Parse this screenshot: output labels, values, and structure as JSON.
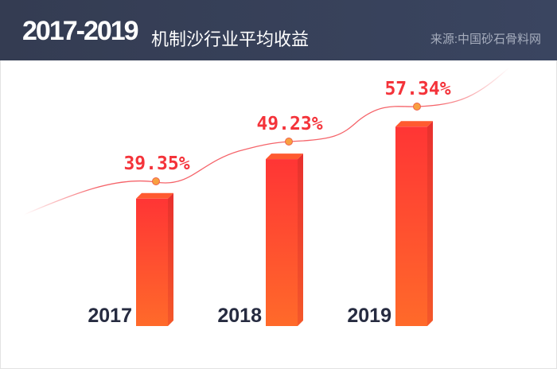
{
  "header": {
    "title_main": "2017-2019",
    "title_sub": "机制沙行业平均收益",
    "source": "来源:中国砂石骨料网"
  },
  "chart_data": {
    "type": "bar",
    "categories": [
      "2017",
      "2018",
      "2019"
    ],
    "values": [
      39.35,
      49.23,
      57.34
    ],
    "data_labels": [
      "39.35%",
      "49.23%",
      "57.34%"
    ],
    "unit": "%",
    "grid": false,
    "colors": {
      "bar_top": "#ff3535",
      "bar_bottom": "#ff6a2a",
      "line": "#f5646a",
      "dot": "#f8a040",
      "label": "#f4333a"
    }
  }
}
